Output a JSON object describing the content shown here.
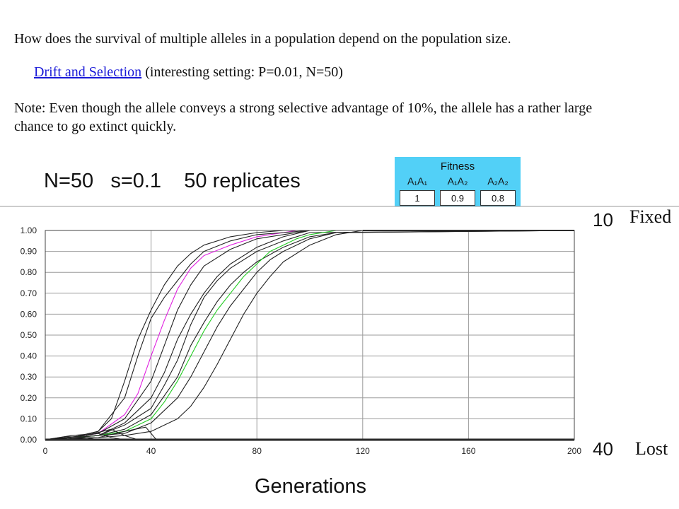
{
  "question": "How does the survival of multiple alleles in a population depend on the population size.",
  "link": {
    "text": "Drift and Selection",
    "suffix": " (interesting setting: P=0.01, N=50)"
  },
  "note": "Note: Even though the allele conveys a strong selective advantage of 10%, the allele has a rather large chance to go extinct quickly.",
  "params": {
    "n": "N=50",
    "s": "s=0.1",
    "replicates": "50 replicates"
  },
  "fitness": {
    "title": "Fitness",
    "headers": [
      "A₁A₁",
      "A₁A₂",
      "A₂A₂"
    ],
    "values": [
      "1",
      "0.9",
      "0.8"
    ]
  },
  "counts": {
    "fixed_count": "10",
    "fixed_label": "Fixed",
    "lost_count": "40",
    "lost_label": "Lost"
  },
  "colors": {
    "link": "#1a1ad8",
    "panel": "#52d0f7",
    "magenta": "#e020e0",
    "green": "#22cc22",
    "line": "#222222"
  },
  "chart_data": {
    "type": "line",
    "xlabel": "Generations",
    "ylabel": "",
    "xlim": [
      0,
      200
    ],
    "ylim": [
      0,
      1
    ],
    "x_ticks": [
      "0",
      "40",
      "80",
      "120",
      "160",
      "200"
    ],
    "y_ticks": [
      "0.00",
      "0.10",
      "0.20",
      "0.30",
      "0.40",
      "0.50",
      "0.60",
      "0.70",
      "0.80",
      "0.90",
      "1.00"
    ],
    "grid": true,
    "lost_replicates": 40,
    "series": [
      {
        "color": "#222222",
        "x": [
          0,
          10,
          20,
          25,
          30,
          35,
          40,
          45,
          50,
          55,
          60,
          70,
          80,
          90,
          200
        ],
        "y": [
          0,
          0.01,
          0.04,
          0.1,
          0.28,
          0.48,
          0.62,
          0.74,
          0.83,
          0.89,
          0.93,
          0.97,
          0.99,
          1,
          1
        ]
      },
      {
        "color": "#e020e0",
        "x": [
          0,
          10,
          20,
          30,
          35,
          40,
          45,
          50,
          55,
          60,
          70,
          80,
          90,
          95,
          200
        ],
        "y": [
          0,
          0.01,
          0.03,
          0.12,
          0.22,
          0.4,
          0.57,
          0.72,
          0.82,
          0.88,
          0.93,
          0.97,
          0.99,
          1,
          1
        ]
      },
      {
        "color": "#222222",
        "x": [
          0,
          10,
          20,
          30,
          35,
          40,
          45,
          50,
          55,
          60,
          70,
          80,
          90,
          100,
          200
        ],
        "y": [
          0,
          0.01,
          0.04,
          0.2,
          0.4,
          0.58,
          0.68,
          0.76,
          0.84,
          0.9,
          0.95,
          0.98,
          0.99,
          1,
          1
        ]
      },
      {
        "color": "#222222",
        "x": [
          0,
          10,
          20,
          30,
          40,
          45,
          50,
          55,
          60,
          70,
          80,
          90,
          100,
          200
        ],
        "y": [
          0,
          0.01,
          0.03,
          0.1,
          0.28,
          0.45,
          0.62,
          0.74,
          0.83,
          0.91,
          0.96,
          0.98,
          1,
          1
        ]
      },
      {
        "color": "#222222",
        "x": [
          0,
          10,
          20,
          30,
          40,
          45,
          50,
          55,
          60,
          65,
          70,
          80,
          90,
          100,
          200
        ],
        "y": [
          0,
          0.01,
          0.02,
          0.08,
          0.2,
          0.32,
          0.48,
          0.6,
          0.7,
          0.78,
          0.84,
          0.92,
          0.97,
          1,
          1
        ]
      },
      {
        "color": "#222222",
        "x": [
          0,
          10,
          20,
          30,
          40,
          45,
          50,
          55,
          60,
          65,
          70,
          80,
          90,
          100,
          200
        ],
        "y": [
          0,
          0.01,
          0.02,
          0.07,
          0.15,
          0.26,
          0.38,
          0.55,
          0.68,
          0.76,
          0.82,
          0.9,
          0.95,
          0.99,
          1
        ]
      },
      {
        "color": "#222222",
        "x": [
          0,
          10,
          20,
          30,
          40,
          50,
          55,
          60,
          65,
          70,
          75,
          80,
          90,
          100,
          110,
          200
        ],
        "y": [
          0,
          0.01,
          0.02,
          0.05,
          0.12,
          0.3,
          0.45,
          0.56,
          0.66,
          0.74,
          0.8,
          0.85,
          0.92,
          0.97,
          0.99,
          1
        ]
      },
      {
        "color": "#22cc22",
        "x": [
          0,
          10,
          20,
          30,
          40,
          45,
          50,
          55,
          60,
          65,
          70,
          75,
          80,
          85,
          90,
          95,
          100,
          110,
          200
        ],
        "y": [
          0,
          0.01,
          0.02,
          0.04,
          0.1,
          0.18,
          0.28,
          0.4,
          0.52,
          0.62,
          0.7,
          0.78,
          0.84,
          0.9,
          0.93,
          0.96,
          0.98,
          1,
          1
        ]
      },
      {
        "color": "#222222",
        "x": [
          0,
          10,
          20,
          30,
          40,
          50,
          55,
          60,
          65,
          70,
          75,
          80,
          85,
          90,
          100,
          110,
          200
        ],
        "y": [
          0,
          0.01,
          0.02,
          0.03,
          0.08,
          0.2,
          0.3,
          0.42,
          0.54,
          0.64,
          0.72,
          0.8,
          0.86,
          0.9,
          0.96,
          0.99,
          1
        ]
      },
      {
        "color": "#222222",
        "x": [
          0,
          10,
          20,
          30,
          40,
          50,
          55,
          60,
          65,
          70,
          75,
          80,
          85,
          90,
          100,
          110,
          120,
          200
        ],
        "y": [
          0,
          0.01,
          0.01,
          0.02,
          0.04,
          0.1,
          0.16,
          0.25,
          0.36,
          0.48,
          0.6,
          0.7,
          0.78,
          0.85,
          0.93,
          0.98,
          1,
          1
        ]
      },
      {
        "color": "#222222",
        "x": [
          0,
          10,
          20,
          25,
          30,
          200
        ],
        "y": [
          0,
          0.02,
          0.03,
          0.01,
          0,
          0
        ]
      },
      {
        "color": "#222222",
        "x": [
          0,
          15,
          25,
          30,
          35,
          200
        ],
        "y": [
          0,
          0.02,
          0.05,
          0.02,
          0,
          0
        ]
      },
      {
        "color": "#222222",
        "x": [
          0,
          8,
          15,
          20,
          200
        ],
        "y": [
          0,
          0.015,
          0.01,
          0,
          0
        ]
      },
      {
        "color": "#222222",
        "x": [
          0,
          20,
          30,
          38,
          42,
          200
        ],
        "y": [
          0,
          0.01,
          0.04,
          0.06,
          0,
          0
        ]
      }
    ]
  }
}
